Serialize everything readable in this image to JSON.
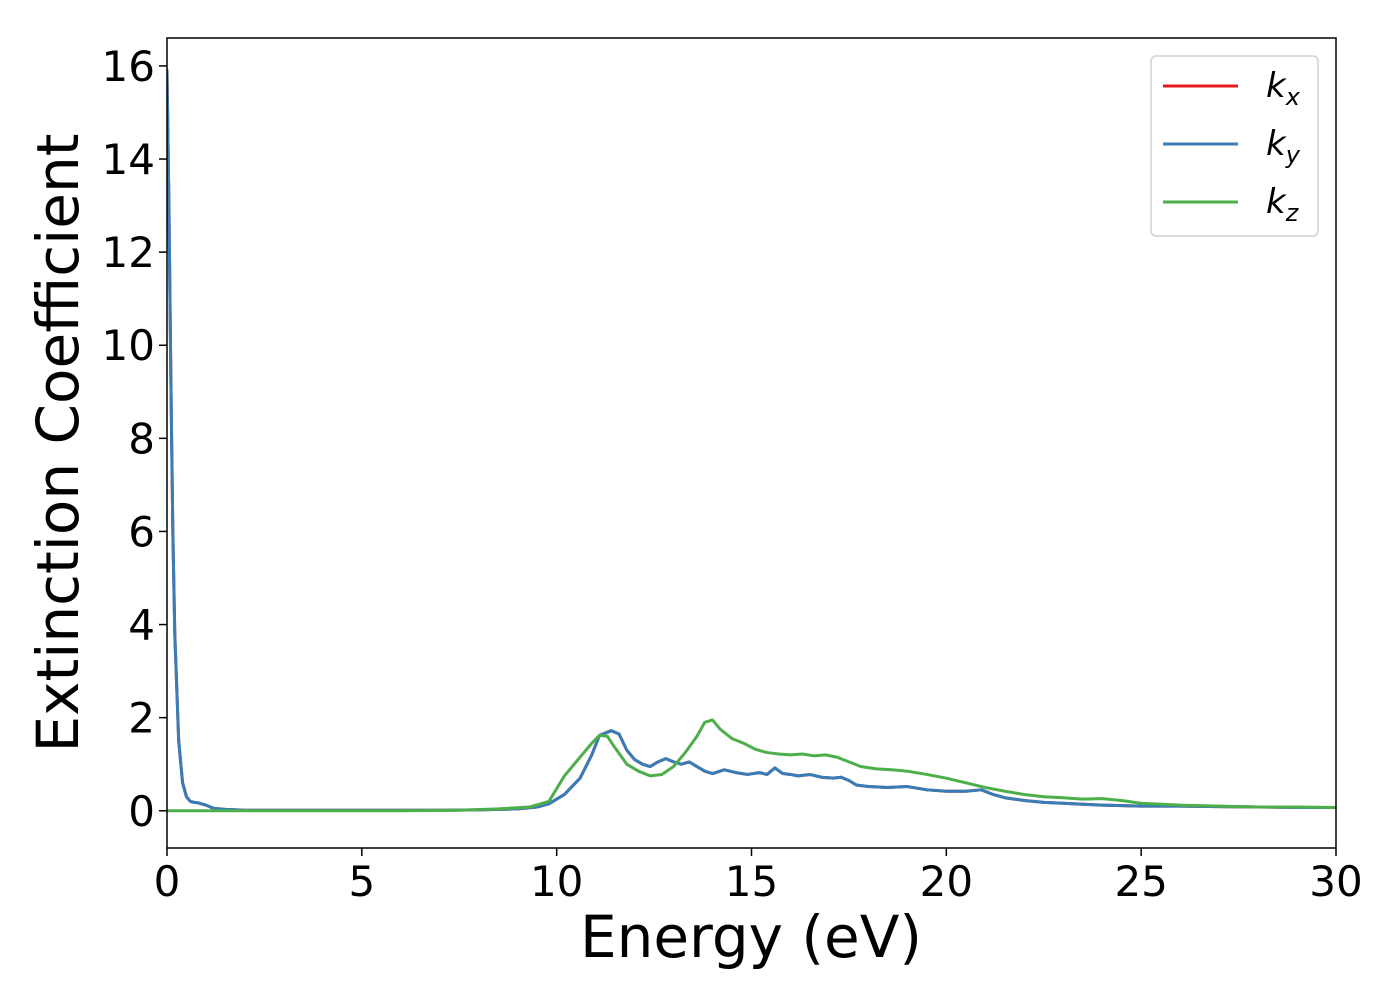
{
  "chart_data": {
    "type": "line",
    "title": "",
    "xlabel": "Energy (eV)",
    "ylabel": "Extinction Coefficient",
    "xlim": [
      0,
      30
    ],
    "ylim": [
      -0.8,
      16.6
    ],
    "xticks": [
      0,
      5,
      10,
      15,
      20,
      25,
      30
    ],
    "yticks": [
      0,
      2,
      4,
      6,
      8,
      10,
      12,
      14,
      16
    ],
    "grid": false,
    "legend_position": "top-right",
    "legend": [
      {
        "base": "k",
        "sub": "x",
        "color": "#e41a1c"
      },
      {
        "base": "k",
        "sub": "y",
        "color": "#377eb8"
      },
      {
        "base": "k",
        "sub": "z",
        "color": "#4daf4a"
      }
    ],
    "series": [
      {
        "name": "kx",
        "color": "#e41a1c",
        "x": [
          0.0,
          0.05,
          0.1,
          0.15,
          0.2,
          0.3,
          0.4,
          0.5,
          0.6,
          0.7,
          0.8,
          1.0,
          1.2,
          1.5,
          1.8,
          2,
          3,
          4,
          5,
          6,
          7,
          8,
          9,
          9.5,
          9.8,
          10.2,
          10.6,
          10.9,
          11.1,
          11.4,
          11.6,
          11.8,
          12.0,
          12.2,
          12.4,
          12.6,
          12.8,
          13.0,
          13.2,
          13.4,
          13.6,
          13.8,
          14.0,
          14.3,
          14.6,
          14.9,
          15.2,
          15.4,
          15.6,
          15.8,
          16.0,
          16.2,
          16.5,
          16.8,
          17.1,
          17.3,
          17.5,
          17.7,
          18.0,
          18.5,
          19.0,
          19.5,
          20.0,
          20.5,
          20.9,
          21.2,
          21.5,
          22.0,
          22.5,
          23.0,
          23.5,
          24.0,
          24.5,
          25.0,
          26.0,
          27.0,
          28.0,
          29.0,
          30.0
        ],
        "y": [
          15.9,
          13.0,
          9.2,
          6.0,
          3.8,
          1.5,
          0.6,
          0.3,
          0.2,
          0.18,
          0.17,
          0.12,
          0.05,
          0.03,
          0.02,
          0.01,
          0.01,
          0.01,
          0.01,
          0.01,
          0.01,
          0.02,
          0.04,
          0.08,
          0.15,
          0.35,
          0.7,
          1.2,
          1.62,
          1.72,
          1.65,
          1.3,
          1.1,
          1.0,
          0.95,
          1.05,
          1.12,
          1.05,
          1.0,
          1.05,
          0.95,
          0.85,
          0.8,
          0.88,
          0.82,
          0.78,
          0.82,
          0.78,
          0.92,
          0.8,
          0.78,
          0.75,
          0.78,
          0.72,
          0.7,
          0.72,
          0.65,
          0.55,
          0.52,
          0.5,
          0.52,
          0.45,
          0.42,
          0.42,
          0.45,
          0.35,
          0.28,
          0.22,
          0.18,
          0.16,
          0.14,
          0.12,
          0.11,
          0.1,
          0.1,
          0.09,
          0.08,
          0.07,
          0.07
        ]
      },
      {
        "name": "ky",
        "color": "#377eb8",
        "x": [
          0.0,
          0.05,
          0.1,
          0.15,
          0.2,
          0.3,
          0.4,
          0.5,
          0.6,
          0.7,
          0.8,
          1.0,
          1.2,
          1.5,
          1.8,
          2,
          3,
          4,
          5,
          6,
          7,
          8,
          9,
          9.5,
          9.8,
          10.2,
          10.6,
          10.9,
          11.1,
          11.4,
          11.6,
          11.8,
          12.0,
          12.2,
          12.4,
          12.6,
          12.8,
          13.0,
          13.2,
          13.4,
          13.6,
          13.8,
          14.0,
          14.3,
          14.6,
          14.9,
          15.2,
          15.4,
          15.6,
          15.8,
          16.0,
          16.2,
          16.5,
          16.8,
          17.1,
          17.3,
          17.5,
          17.7,
          18.0,
          18.5,
          19.0,
          19.5,
          20.0,
          20.5,
          20.9,
          21.2,
          21.5,
          22.0,
          22.5,
          23.0,
          23.5,
          24.0,
          24.5,
          25.0,
          26.0,
          27.0,
          28.0,
          29.0,
          30.0
        ],
        "y": [
          15.9,
          13.0,
          9.2,
          6.0,
          3.8,
          1.5,
          0.6,
          0.3,
          0.2,
          0.18,
          0.17,
          0.12,
          0.05,
          0.03,
          0.02,
          0.01,
          0.01,
          0.01,
          0.01,
          0.01,
          0.01,
          0.02,
          0.04,
          0.08,
          0.15,
          0.35,
          0.7,
          1.2,
          1.62,
          1.72,
          1.65,
          1.3,
          1.1,
          1.0,
          0.95,
          1.05,
          1.12,
          1.05,
          1.0,
          1.05,
          0.95,
          0.85,
          0.8,
          0.88,
          0.82,
          0.78,
          0.82,
          0.78,
          0.92,
          0.8,
          0.78,
          0.75,
          0.78,
          0.72,
          0.7,
          0.72,
          0.65,
          0.55,
          0.52,
          0.5,
          0.52,
          0.45,
          0.42,
          0.42,
          0.45,
          0.35,
          0.28,
          0.22,
          0.18,
          0.16,
          0.14,
          0.12,
          0.11,
          0.1,
          0.1,
          0.09,
          0.08,
          0.07,
          0.07
        ]
      },
      {
        "name": "kz",
        "color": "#4daf4a",
        "x": [
          0,
          2,
          4,
          6,
          7.5,
          8.5,
          9.3,
          9.8,
          10.2,
          10.6,
          10.9,
          11.1,
          11.3,
          11.5,
          11.8,
          12.1,
          12.4,
          12.7,
          13.0,
          13.3,
          13.6,
          13.8,
          14.0,
          14.2,
          14.5,
          14.8,
          15.1,
          15.4,
          15.7,
          16.0,
          16.3,
          16.6,
          16.9,
          17.2,
          17.5,
          17.8,
          18.2,
          18.6,
          19.0,
          19.5,
          20.0,
          20.5,
          21.0,
          21.5,
          22.0,
          22.5,
          23.0,
          23.5,
          24.0,
          24.5,
          25.0,
          26.0,
          27.0,
          28.0,
          29.0,
          30.0
        ],
        "y": [
          0.0,
          0.0,
          0.0,
          0.0,
          0.01,
          0.04,
          0.08,
          0.2,
          0.75,
          1.15,
          1.45,
          1.62,
          1.6,
          1.35,
          1.0,
          0.85,
          0.75,
          0.78,
          0.95,
          1.25,
          1.6,
          1.9,
          1.95,
          1.75,
          1.55,
          1.45,
          1.32,
          1.25,
          1.22,
          1.2,
          1.22,
          1.18,
          1.2,
          1.15,
          1.05,
          0.95,
          0.9,
          0.88,
          0.85,
          0.78,
          0.7,
          0.6,
          0.5,
          0.42,
          0.35,
          0.3,
          0.28,
          0.25,
          0.26,
          0.22,
          0.16,
          0.12,
          0.1,
          0.08,
          0.08,
          0.07
        ]
      }
    ]
  }
}
